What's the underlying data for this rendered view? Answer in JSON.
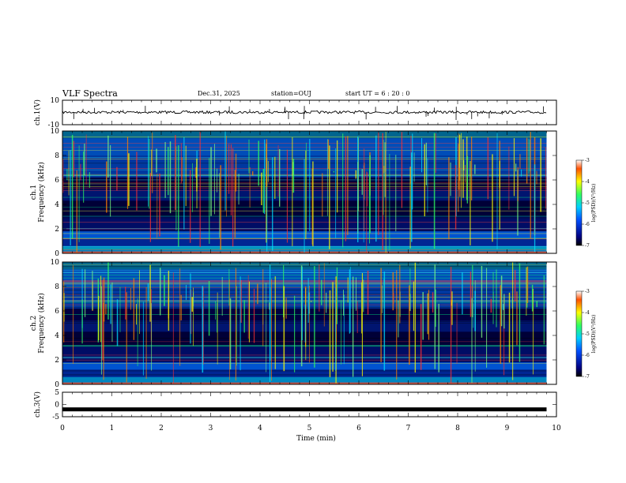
{
  "chart_data": {
    "type": "heatmap",
    "title": "VLF Spectra",
    "date": "Dec.31, 2025",
    "station": "station=OUJ",
    "start_ut": "start UT =  6 : 20 : 0",
    "xlabel": "Time (min)",
    "xlim": [
      0,
      10
    ],
    "x_ticks": [
      "0",
      "1",
      "2",
      "3",
      "4",
      "5",
      "6",
      "7",
      "8",
      "9",
      "10"
    ],
    "panels": [
      {
        "id": "ch1-wave",
        "kind": "waveform",
        "ylabel": "ch.1(V)",
        "ylim": [
          -10,
          10
        ],
        "y_ticks": [
          "10",
          "-10"
        ],
        "baseline": 0.2,
        "duration_min": 9.8
      },
      {
        "id": "ch1-spec",
        "kind": "spectrogram",
        "ylabel": "ch.1\nFrequency (kHz)",
        "ylim": [
          0,
          10
        ],
        "y_ticks": [
          "0",
          "2",
          "4",
          "6",
          "8",
          "10"
        ],
        "duration_min": 9.8,
        "colorbar": {
          "label": "log(PSD)(V²/Hz)",
          "range": [
            -7,
            -3
          ],
          "ticks": [
            "-3",
            "-4",
            "-5",
            "-6",
            "-7"
          ]
        }
      },
      {
        "id": "ch2-spec",
        "kind": "spectrogram",
        "ylabel": "ch.2\nFrequency (kHz)",
        "ylim": [
          0,
          10
        ],
        "y_ticks": [
          "0",
          "2",
          "4",
          "6",
          "8",
          "10"
        ],
        "duration_min": 9.8,
        "colorbar": {
          "label": "log(PSD)(V²/Hz)",
          "range": [
            -7,
            -3
          ],
          "ticks": [
            "-3",
            "-4",
            "-5",
            "-6",
            "-7"
          ]
        }
      },
      {
        "id": "ch3-wave",
        "kind": "waveform",
        "ylabel": "ch.3(V)",
        "ylim": [
          -5,
          5
        ],
        "y_ticks": [
          "5",
          "0",
          "-5"
        ],
        "baseline": -2.0,
        "duration_min": 9.8
      }
    ]
  }
}
